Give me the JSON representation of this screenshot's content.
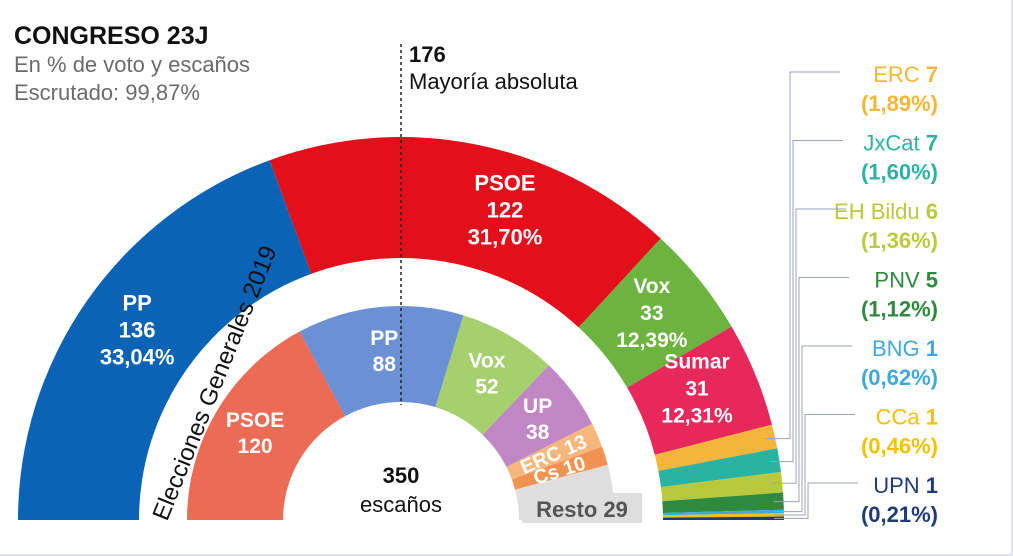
{
  "header": {
    "title": "CONGRESO 23J",
    "subtitle": "En % de voto y escaños",
    "scrutiny": "Escrutado: 99,87%"
  },
  "majority": {
    "seats": "176",
    "label": "Mayoría absoluta"
  },
  "center": {
    "total": "350",
    "unit": "escaños"
  },
  "colors": {
    "text_dark": "#111111",
    "text_gray": "#6b6b6b",
    "label_light": "#ffffff"
  },
  "chart_data": [
    {
      "type": "semicircle",
      "title": "CONGRESO 23J",
      "total_seats": 350,
      "series": [
        {
          "party": "PP",
          "seats": 136,
          "seats_label": "136",
          "pct": 33.04,
          "pct_label": "33,04%",
          "color": "#0a63b4"
        },
        {
          "party": "PSOE",
          "seats": 122,
          "seats_label": "122",
          "pct": 31.7,
          "pct_label": "31,70%",
          "color": "#e3101b"
        },
        {
          "party": "Vox",
          "seats": 33,
          "seats_label": "33",
          "pct": 12.39,
          "pct_label": "12,39%",
          "color": "#6db33f"
        },
        {
          "party": "Sumar",
          "seats": 31,
          "seats_label": "31",
          "pct": 12.31,
          "pct_label": "12,31%",
          "color": "#e7285b"
        },
        {
          "party": "ERC",
          "seats": 7,
          "seats_label": "7",
          "pct": 1.89,
          "pct_label": "(1,89%)",
          "color": "#f4b63a"
        },
        {
          "party": "JxCat",
          "seats": 7,
          "seats_label": "7",
          "pct": 1.6,
          "pct_label": "(1,60%)",
          "color": "#2bb3a1"
        },
        {
          "party": "EH Bildu",
          "seats": 6,
          "seats_label": "6",
          "pct": 1.36,
          "pct_label": "(1,36%)",
          "color": "#b9c93e"
        },
        {
          "party": "PNV",
          "seats": 5,
          "seats_label": "5",
          "pct": 1.12,
          "pct_label": "(1,12%)",
          "color": "#2e8a3e"
        },
        {
          "party": "BNG",
          "seats": 1,
          "seats_label": "1",
          "pct": 0.62,
          "pct_label": "(0,62%)",
          "color": "#3fa9dd"
        },
        {
          "party": "CCa",
          "seats": 1,
          "seats_label": "1",
          "pct": 0.46,
          "pct_label": "(0,46%)",
          "color": "#f2c200"
        },
        {
          "party": "UPN",
          "seats": 1,
          "seats_label": "1",
          "pct": 0.21,
          "pct_label": "(0,21%)",
          "color": "#1e3c78"
        }
      ]
    },
    {
      "type": "semicircle",
      "title": "Elecciones Generales 2019",
      "total_seats": 350,
      "series": [
        {
          "party": "PSOE",
          "seats": 120,
          "seats_label": "120",
          "color": "#ec6b55"
        },
        {
          "party": "PP",
          "seats": 88,
          "seats_label": "88",
          "color": "#6b90d4"
        },
        {
          "party": "Vox",
          "seats": 52,
          "seats_label": "52",
          "color": "#a6d06e"
        },
        {
          "party": "UP",
          "seats": 38,
          "seats_label": "38",
          "color": "#c087c4"
        },
        {
          "party": "ERC",
          "seats": 13,
          "seats_label": "13",
          "color": "#f7b77b"
        },
        {
          "party": "Cs",
          "seats": 10,
          "seats_label": "10",
          "color": "#f09352"
        },
        {
          "party": "Resto",
          "seats": 29,
          "seats_label": "29",
          "color": "#dedede"
        }
      ]
    }
  ]
}
